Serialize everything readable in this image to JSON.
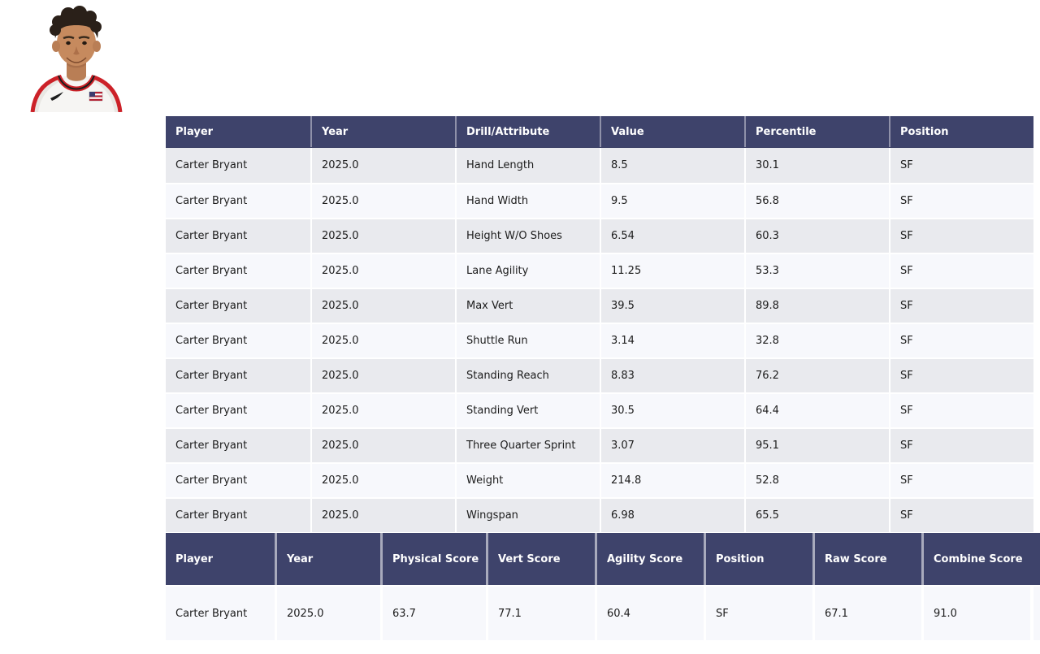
{
  "colors": {
    "header_bg": "#3e436b",
    "header_text": "#ffffff",
    "row_odd": "#e9eaee",
    "row_even": "#f7f8fc",
    "body_text": "#1c1c1c",
    "jersey_trim_red": "#cc2128"
  },
  "photo": {
    "label": "Carter Bryant headshot"
  },
  "measurements_table": {
    "columns": [
      "Player",
      "Year",
      "Drill/Attribute",
      "Value",
      "Percentile",
      "Position"
    ],
    "rows": [
      [
        "Carter Bryant",
        "2025.0",
        "Hand Length",
        "8.5",
        "30.1",
        "SF"
      ],
      [
        "Carter Bryant",
        "2025.0",
        "Hand Width",
        "9.5",
        "56.8",
        "SF"
      ],
      [
        "Carter Bryant",
        "2025.0",
        "Height W/O Shoes",
        "6.54",
        "60.3",
        "SF"
      ],
      [
        "Carter Bryant",
        "2025.0",
        "Lane Agility",
        "11.25",
        "53.3",
        "SF"
      ],
      [
        "Carter Bryant",
        "2025.0",
        "Max Vert",
        "39.5",
        "89.8",
        "SF"
      ],
      [
        "Carter Bryant",
        "2025.0",
        "Shuttle Run",
        "3.14",
        "32.8",
        "SF"
      ],
      [
        "Carter Bryant",
        "2025.0",
        "Standing Reach",
        "8.83",
        "76.2",
        "SF"
      ],
      [
        "Carter Bryant",
        "2025.0",
        "Standing Vert",
        "30.5",
        "64.4",
        "SF"
      ],
      [
        "Carter Bryant",
        "2025.0",
        "Three Quarter Sprint",
        "3.07",
        "95.1",
        "SF"
      ],
      [
        "Carter Bryant",
        "2025.0",
        "Weight",
        "214.8",
        "52.8",
        "SF"
      ],
      [
        "Carter Bryant",
        "2025.0",
        "Wingspan",
        "6.98",
        "65.5",
        "SF"
      ]
    ]
  },
  "scores_table": {
    "columns": [
      "Player",
      "Year",
      "Physical Score",
      "Vert Score",
      "Agility Score",
      "Position",
      "Raw Score",
      "Combine Score"
    ],
    "rows": [
      [
        "Carter Bryant",
        "2025.0",
        "63.7",
        "77.1",
        "60.4",
        "SF",
        "67.1",
        "91.0"
      ]
    ]
  }
}
